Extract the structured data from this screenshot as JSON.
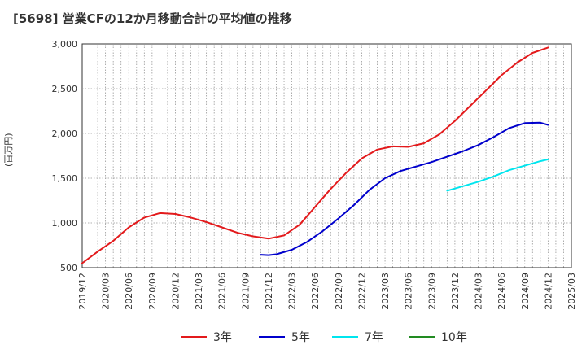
{
  "title": "[5698]  営業CFの12か月移動合計の平均値の推移",
  "y_unit": "(百万円)",
  "chart_data": {
    "type": "line",
    "title": "[5698]  営業CFの12か月移動合計の平均値の推移",
    "xlabel": "",
    "ylabel": "(百万円)",
    "xlim": [
      "2019/12",
      "2025/03"
    ],
    "ylim": [
      500,
      3000
    ],
    "y_ticks": [
      500,
      1000,
      1500,
      2000,
      2500,
      3000
    ],
    "y_tick_labels": [
      "500",
      "1,000",
      "1,500",
      "2,000",
      "2,500",
      "3,000"
    ],
    "x_tick_labels": [
      "2019/12",
      "2020/03",
      "2020/06",
      "2020/09",
      "2020/12",
      "2021/03",
      "2021/06",
      "2021/09",
      "2021/12",
      "2022/03",
      "2022/06",
      "2022/09",
      "2022/12",
      "2023/03",
      "2023/06",
      "2023/09",
      "2023/12",
      "2024/03",
      "2024/06",
      "2024/09",
      "2024/12",
      "2025/03"
    ],
    "grid": true,
    "legend_position": "bottom",
    "series": [
      {
        "name": "3年",
        "color": "#e31a1c",
        "points": [
          [
            "2019/12",
            550
          ],
          [
            "2020/02",
            680
          ],
          [
            "2020/04",
            800
          ],
          [
            "2020/06",
            950
          ],
          [
            "2020/08",
            1060
          ],
          [
            "2020/10",
            1110
          ],
          [
            "2020/12",
            1100
          ],
          [
            "2021/02",
            1060
          ],
          [
            "2021/04",
            1010
          ],
          [
            "2021/06",
            950
          ],
          [
            "2021/08",
            890
          ],
          [
            "2021/10",
            850
          ],
          [
            "2021/12",
            825
          ],
          [
            "2022/02",
            860
          ],
          [
            "2022/04",
            980
          ],
          [
            "2022/06",
            1180
          ],
          [
            "2022/08",
            1380
          ],
          [
            "2022/10",
            1560
          ],
          [
            "2022/12",
            1720
          ],
          [
            "2023/02",
            1820
          ],
          [
            "2023/04",
            1855
          ],
          [
            "2023/06",
            1850
          ],
          [
            "2023/08",
            1890
          ],
          [
            "2023/10",
            1990
          ],
          [
            "2023/12",
            2140
          ],
          [
            "2024/02",
            2310
          ],
          [
            "2024/04",
            2480
          ],
          [
            "2024/06",
            2650
          ],
          [
            "2024/08",
            2790
          ],
          [
            "2024/10",
            2900
          ],
          [
            "2024/12",
            2960
          ]
        ]
      },
      {
        "name": "5年",
        "color": "#0000cc",
        "points": [
          [
            "2021/11",
            645
          ],
          [
            "2021/12",
            640
          ],
          [
            "2022/01",
            650
          ],
          [
            "2022/03",
            700
          ],
          [
            "2022/05",
            790
          ],
          [
            "2022/07",
            910
          ],
          [
            "2022/09",
            1050
          ],
          [
            "2022/11",
            1200
          ],
          [
            "2023/01",
            1370
          ],
          [
            "2023/03",
            1500
          ],
          [
            "2023/05",
            1580
          ],
          [
            "2023/07",
            1630
          ],
          [
            "2023/09",
            1680
          ],
          [
            "2023/11",
            1740
          ],
          [
            "2024/01",
            1800
          ],
          [
            "2024/03",
            1870
          ],
          [
            "2024/05",
            1960
          ],
          [
            "2024/07",
            2060
          ],
          [
            "2024/09",
            2115
          ],
          [
            "2024/11",
            2120
          ],
          [
            "2024/12",
            2095
          ]
        ]
      },
      {
        "name": "7年",
        "color": "#00e5ee",
        "points": [
          [
            "2023/11",
            1360
          ],
          [
            "2024/01",
            1410
          ],
          [
            "2024/03",
            1460
          ],
          [
            "2024/05",
            1520
          ],
          [
            "2024/07",
            1590
          ],
          [
            "2024/09",
            1640
          ],
          [
            "2024/11",
            1690
          ],
          [
            "2024/12",
            1710
          ]
        ]
      },
      {
        "name": "10年",
        "color": "#228b22",
        "points": []
      }
    ]
  }
}
